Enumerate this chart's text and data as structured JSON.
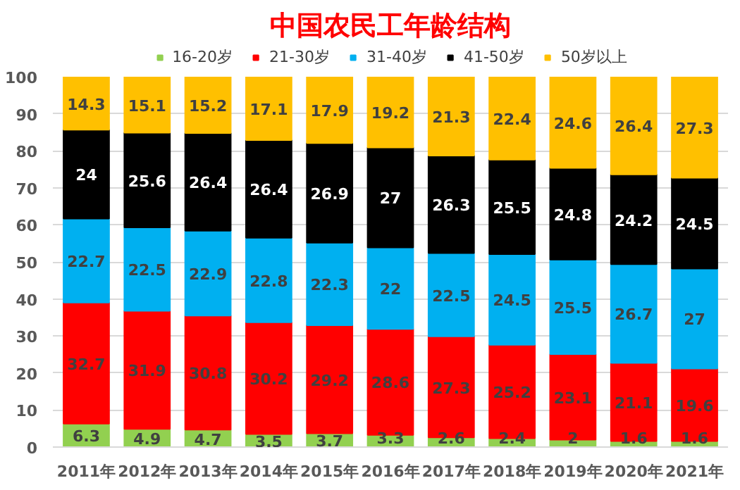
{
  "chart_data": {
    "type": "bar",
    "title": "中国农民工年龄结构",
    "stacked": true,
    "data_labels": true,
    "grid": "y",
    "legend": "top",
    "categories": [
      "2011年",
      "2012年",
      "2013年",
      "2014年",
      "2015年",
      "2016年",
      "2017年",
      "2018年",
      "2019年",
      "2020年",
      "2021年"
    ],
    "ylim": [
      0,
      100
    ],
    "yticks": [
      0,
      10,
      20,
      30,
      40,
      50,
      60,
      70,
      80,
      90,
      100
    ],
    "series": [
      {
        "name": "16-20岁",
        "color": "#92d050",
        "values": [
          6.3,
          4.9,
          4.7,
          3.5,
          3.7,
          3.3,
          2.6,
          2.4,
          2,
          1.6,
          1.6
        ]
      },
      {
        "name": "21-30岁",
        "color": "#ff0000",
        "values": [
          32.7,
          31.9,
          30.8,
          30.2,
          29.2,
          28.6,
          27.3,
          25.2,
          23.1,
          21.1,
          19.6
        ]
      },
      {
        "name": "31-40岁",
        "color": "#00b0f0",
        "values": [
          22.7,
          22.5,
          22.9,
          22.8,
          22.3,
          22,
          22.5,
          24.5,
          25.5,
          26.7,
          27
        ]
      },
      {
        "name": "41-50岁",
        "color": "#000000",
        "values": [
          24,
          25.6,
          26.4,
          26.4,
          26.9,
          27,
          26.3,
          25.5,
          24.8,
          24.2,
          24.5
        ]
      },
      {
        "name": "50岁以上",
        "color": "#ffc000",
        "values": [
          14.3,
          15.1,
          15.2,
          17.1,
          17.9,
          19.2,
          21.3,
          22.4,
          24.6,
          26.4,
          27.3
        ]
      }
    ]
  }
}
